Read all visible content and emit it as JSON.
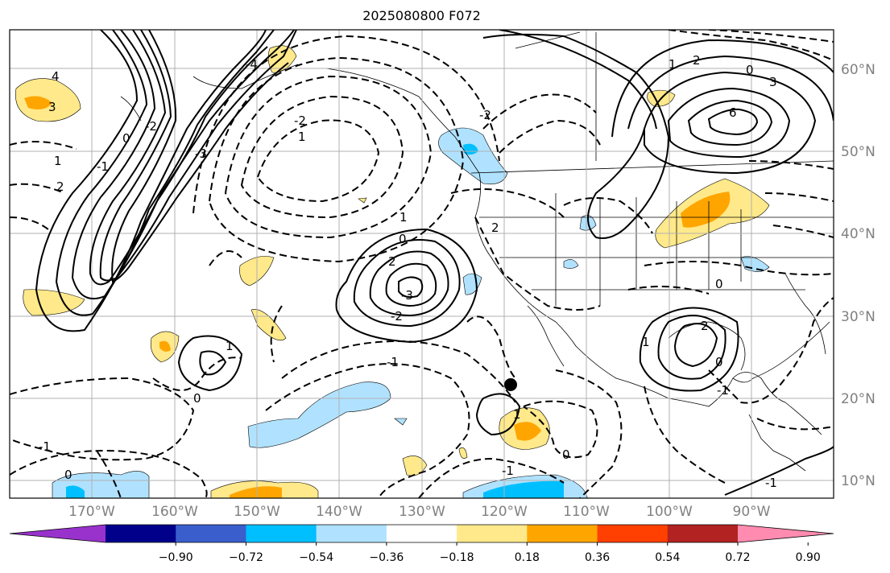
{
  "title": "2025080800 F072",
  "lat_labels": [
    "60°N",
    "50°N",
    "40°N",
    "30°N",
    "20°N",
    "10°N"
  ],
  "lon_labels": [
    "170°W",
    "160°W",
    "150°W",
    "140°W",
    "130°W",
    "120°W",
    "110°W",
    "100°W",
    "90°W"
  ],
  "colorbar": {
    "colors": [
      "#9932cc",
      "#00008b",
      "#3a5fcd",
      "#00bfff",
      "#b0e2ff",
      "#ffffff",
      "#ffe98a",
      "#ffa500",
      "#ff4000",
      "#b22222",
      "#ff8cb0"
    ],
    "tick_labels": [
      "−0.90",
      "−0.72",
      "−0.54",
      "−0.36",
      "−0.18",
      "0.18",
      "0.36",
      "0.54",
      "0.72",
      "0.90"
    ]
  },
  "contour_labels": [
    "4",
    "3",
    "2",
    "1",
    "0",
    "-1",
    "-2",
    "-3",
    "-4",
    "6",
    "3",
    "2",
    "1",
    "0",
    "1",
    "2",
    "-3",
    "-2",
    "-1",
    "0",
    "1",
    "-1",
    "-2",
    "0",
    "1",
    "0",
    "-1",
    "2",
    "-1",
    "0",
    "1",
    "2",
    "-2",
    "0",
    "1",
    "0",
    "-1"
  ],
  "marker": "storm-center-dot"
}
